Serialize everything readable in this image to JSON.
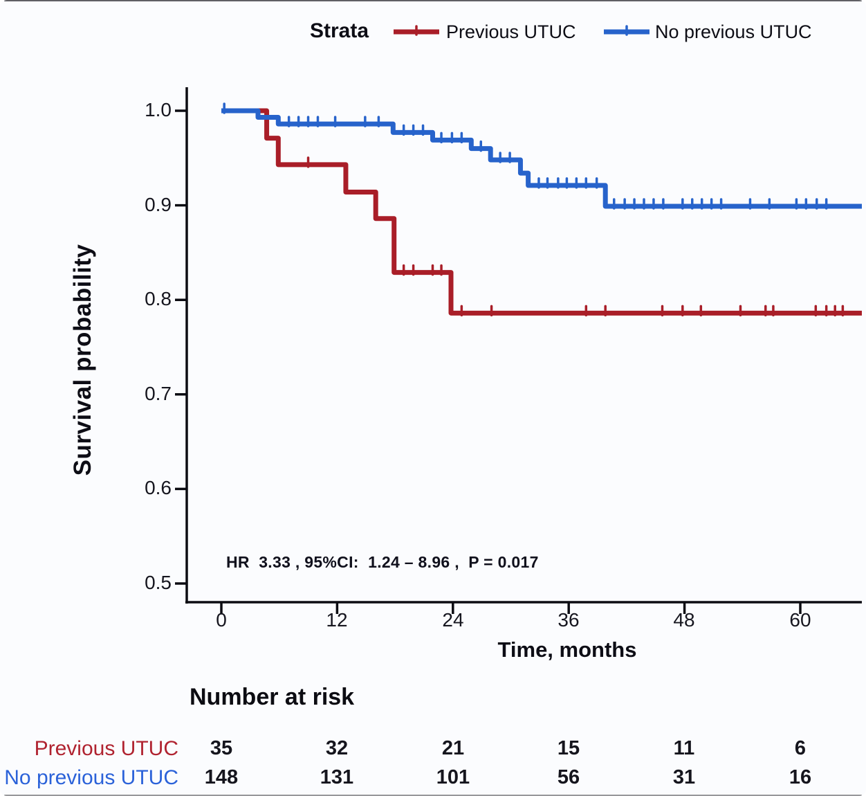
{
  "legend": {
    "title": "Strata",
    "items": [
      {
        "label": "Previous UTUC",
        "color": "#a91e28"
      },
      {
        "label": "No previous UTUC",
        "color": "#2763cb"
      }
    ]
  },
  "axes": {
    "x_label": "Time, months",
    "y_label": "Survival probability",
    "x_ticks": [
      0,
      12,
      24,
      36,
      48,
      60
    ],
    "y_ticks": [
      "1.0",
      "0.9",
      "0.8",
      "0.7",
      "0.6",
      "0.5"
    ]
  },
  "annotation": "HR  3.33 , 95%CI:  1.24 – 8.96 ,  P = 0.017",
  "chart_data": {
    "type": "line",
    "subtype": "kaplan-meier-step",
    "title": "",
    "xlabel": "Time, months",
    "ylabel": "Survival probability",
    "xlim": [
      0,
      66.4
    ],
    "ylim": [
      0.48,
      1.02
    ],
    "grid": false,
    "legend_position": "top",
    "stats": {
      "HR": "3.33",
      "CI95": "1.24 – 8.96",
      "P": "0.017"
    },
    "series": [
      {
        "name": "Previous UTUC",
        "color": "#a91e28",
        "steps": [
          [
            0,
            1.0
          ],
          [
            4.7,
            0.971
          ],
          [
            5.9,
            0.943
          ],
          [
            12.9,
            0.914
          ],
          [
            16.0,
            0.886
          ],
          [
            17.9,
            0.829
          ],
          [
            23.8,
            0.786
          ]
        ],
        "censor_times": [
          9.0,
          18.9,
          19.9,
          21.9,
          22.8,
          24.9,
          28.0,
          37.8,
          39.8,
          45.7,
          47.8,
          49.7,
          53.8,
          56.4,
          57.2,
          61.6,
          62.7,
          63.6,
          64.4
        ]
      },
      {
        "name": "No previous UTUC",
        "color": "#2763cb",
        "steps": [
          [
            0,
            1.0
          ],
          [
            3.8,
            0.993
          ],
          [
            5.9,
            0.986
          ],
          [
            17.8,
            0.977
          ],
          [
            21.9,
            0.969
          ],
          [
            25.9,
            0.96
          ],
          [
            27.9,
            0.948
          ],
          [
            31.0,
            0.934
          ],
          [
            31.8,
            0.921
          ],
          [
            39.8,
            0.899
          ]
        ],
        "censor_times": [
          0.3,
          7.0,
          8.0,
          9.0,
          10.0,
          11.8,
          14.9,
          16.3,
          18.9,
          19.9,
          20.9,
          22.8,
          23.9,
          24.9,
          26.9,
          28.9,
          29.9,
          32.9,
          33.8,
          34.9,
          35.8,
          36.8,
          37.8,
          38.9,
          40.7,
          41.8,
          42.8,
          43.8,
          44.8,
          45.8,
          47.8,
          48.8,
          49.8,
          50.8,
          51.8,
          54.8,
          56.8,
          59.6,
          60.6,
          61.7,
          62.7
        ]
      }
    ]
  },
  "risk_table": {
    "title": "Number at risk",
    "times": [
      0,
      12,
      24,
      36,
      48,
      60
    ],
    "rows": [
      {
        "label": "Previous UTUC",
        "color": "#b02330",
        "values": [
          "35",
          "32",
          "21",
          "15",
          "11",
          "6"
        ]
      },
      {
        "label": "No previous UTUC",
        "color": "#2b62d9",
        "values": [
          "148",
          "131",
          "101",
          "56",
          "31",
          "16"
        ]
      }
    ]
  }
}
